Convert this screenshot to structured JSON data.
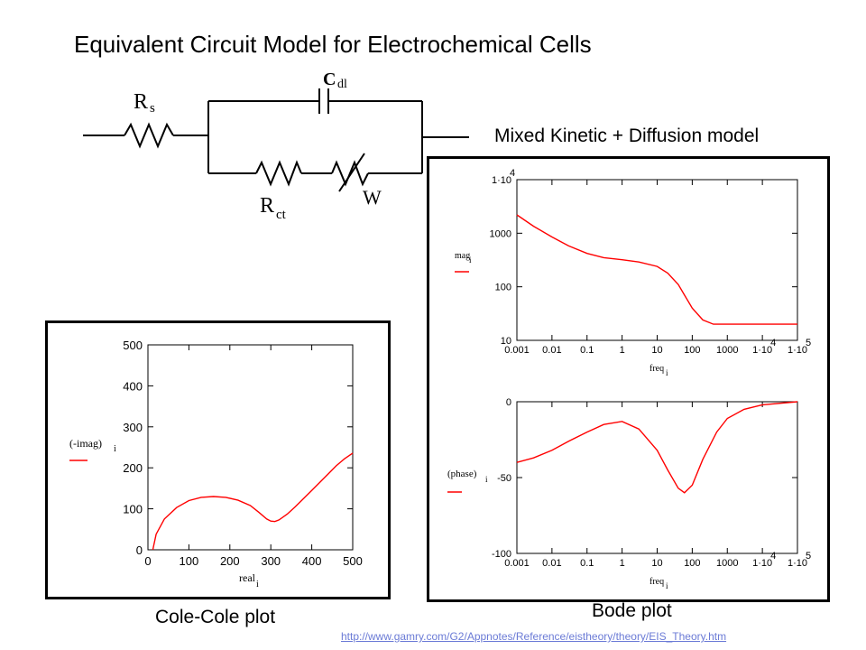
{
  "title": "Equivalent Circuit Model for Electrochemical Cells",
  "circuit": {
    "rs_label": "R",
    "rs_sub": "s",
    "cdl_label": "C",
    "cdl_sub": "dl",
    "rct_label": "R",
    "rct_sub": "ct",
    "w_label": "W"
  },
  "mixed_label": "Mixed Kinetic + Diffusion model",
  "cole_caption": "Cole-Cole plot",
  "bode_caption": "Bode plot",
  "url": "http://www.gamry.com/G2/Appnotes/Reference/eistheory/theory/EIS_Theory.htm",
  "colors": {
    "curve": "#ff0000",
    "link": "#6b7bd6",
    "frame": "#000000"
  },
  "chart_data": [
    {
      "type": "line",
      "name": "cole-cole",
      "xlabel": "real",
      "xlabel_sub": "i",
      "ylabel": "(-imag)",
      "ylabel_sub": "i",
      "xlim": [
        0,
        500
      ],
      "ylim": [
        0,
        500
      ],
      "x_ticks": [
        "0",
        "100",
        "200",
        "300",
        "400",
        "500"
      ],
      "y_ticks": [
        "0",
        "100",
        "200",
        "300",
        "400",
        "500"
      ],
      "series": [
        {
          "x": [
            12,
            20,
            40,
            70,
            100,
            130,
            160,
            190,
            220,
            250,
            270,
            290,
            300,
            310,
            320,
            340,
            360,
            380,
            400,
            420,
            440,
            460,
            480,
            500
          ],
          "y": [
            0,
            38,
            75,
            103,
            120,
            128,
            130,
            128,
            121,
            108,
            92,
            75,
            70,
            69,
            73,
            87,
            105,
            125,
            145,
            165,
            185,
            205,
            222,
            236
          ]
        }
      ]
    },
    {
      "type": "line",
      "name": "bode-magnitude",
      "xlabel": "freq",
      "xlabel_sub": "i",
      "ylabel": "mag",
      "ylabel_sub": "i",
      "xscale": "log",
      "yscale": "log",
      "xlim": [
        0.001,
        100000
      ],
      "ylim": [
        10,
        10000
      ],
      "x_ticks": [
        "0.001",
        "0.01",
        "0.1",
        "1",
        "10",
        "100",
        "1000",
        "1·10",
        "1·10"
      ],
      "x_tick_exp": [
        "",
        "",
        "",
        "",
        "",
        "",
        "",
        "4",
        "5"
      ],
      "y_ticks": [
        "10",
        "100",
        "1000",
        "1·10"
      ],
      "y_tick_exp": [
        "",
        "",
        "",
        "4"
      ],
      "series": [
        {
          "x": [
            0.001,
            0.003,
            0.01,
            0.03,
            0.1,
            0.3,
            1,
            3,
            10,
            20,
            40,
            60,
            100,
            200,
            400,
            1000,
            3000,
            10000,
            100000
          ],
          "y": [
            2200,
            1350,
            850,
            580,
            420,
            350,
            320,
            290,
            240,
            180,
            110,
            70,
            40,
            24,
            20,
            20,
            20,
            20,
            20
          ]
        }
      ]
    },
    {
      "type": "line",
      "name": "bode-phase",
      "xlabel": "freq",
      "xlabel_sub": "i",
      "ylabel": "(phase)",
      "ylabel_sub": "i",
      "xscale": "log",
      "xlim": [
        0.001,
        100000
      ],
      "ylim": [
        -100,
        0
      ],
      "x_ticks": [
        "0.001",
        "0.01",
        "0.1",
        "1",
        "10",
        "100",
        "1000",
        "1·10",
        "1·10"
      ],
      "x_tick_exp": [
        "",
        "",
        "",
        "",
        "",
        "",
        "",
        "4",
        "5"
      ],
      "y_ticks": [
        "-100",
        "-50",
        "0"
      ],
      "series": [
        {
          "x": [
            0.001,
            0.003,
            0.01,
            0.03,
            0.1,
            0.3,
            1,
            3,
            10,
            20,
            40,
            60,
            100,
            200,
            500,
            1000,
            3000,
            10000,
            100000
          ],
          "y": [
            -40,
            -37,
            -32,
            -26,
            -20,
            -15,
            -13,
            -18,
            -32,
            -45,
            -57,
            -60,
            -55,
            -38,
            -20,
            -11,
            -5,
            -2,
            0
          ]
        }
      ]
    }
  ]
}
